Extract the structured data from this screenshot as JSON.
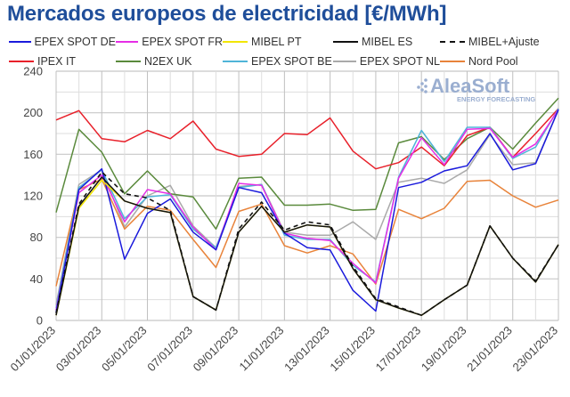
{
  "chart_data": {
    "type": "line",
    "title": "Mercados europeos de electricidad [€/MWh]",
    "xlabel": "",
    "ylabel": "",
    "ylim": [
      0,
      240
    ],
    "yticks": [
      "0",
      "40",
      "80",
      "120",
      "160",
      "200",
      "240"
    ],
    "ytick_values": [
      0,
      40,
      80,
      120,
      160,
      200,
      240
    ],
    "grid": true,
    "legend_position": "top",
    "watermark": {
      "brand": "AleaSoft",
      "tagline": "ENERGY FORECASTING"
    },
    "x": [
      "01/01/2023",
      "02/01/2023",
      "03/01/2023",
      "04/01/2023",
      "05/01/2023",
      "06/01/2023",
      "07/01/2023",
      "08/01/2023",
      "09/01/2023",
      "10/01/2023",
      "11/01/2023",
      "12/01/2023",
      "13/01/2023",
      "14/01/2023",
      "15/01/2023",
      "16/01/2023",
      "17/01/2023",
      "18/01/2023",
      "19/01/2023",
      "20/01/2023",
      "21/01/2023",
      "22/01/2023",
      "23/01/2023"
    ],
    "xtick_labels": [
      "01/01/2023",
      "03/01/2023",
      "05/01/2023",
      "07/01/2023",
      "09/01/2023",
      "11/01/2023",
      "13/01/2023",
      "15/01/2023",
      "17/01/2023",
      "19/01/2023",
      "21/01/2023",
      "23/01/2023"
    ],
    "series": [
      {
        "name": "EPEX SPOT DE",
        "color": "#1a1adc",
        "dash": false,
        "values": [
          8,
          126,
          146,
          59,
          103,
          117,
          85,
          68,
          128,
          123,
          84,
          70,
          68,
          29,
          9,
          128,
          133,
          144,
          149,
          180,
          145,
          151,
          203
        ]
      },
      {
        "name": "EPEX SPOT FR",
        "color": "#e62ee6",
        "dash": false,
        "values": [
          10,
          123,
          140,
          95,
          126,
          122,
          90,
          68,
          132,
          130,
          84,
          79,
          77,
          55,
          36,
          137,
          176,
          150,
          184,
          185,
          157,
          170,
          203
        ]
      },
      {
        "name": "MIBEL PT",
        "color": "#f2e600",
        "dash": false,
        "values": [
          5,
          108,
          135,
          115,
          108,
          104,
          23,
          10,
          85,
          110,
          85,
          92,
          90,
          50,
          20,
          12,
          5,
          20,
          34,
          91,
          60,
          37,
          73
        ]
      },
      {
        "name": "MIBEL ES",
        "color": "#111111",
        "dash": false,
        "values": [
          5,
          110,
          138,
          115,
          108,
          104,
          23,
          10,
          85,
          110,
          85,
          92,
          90,
          50,
          20,
          12,
          5,
          20,
          34,
          91,
          60,
          37,
          73
        ]
      },
      {
        "name": "MIBEL+Ajuste",
        "color": "#111111",
        "dash": true,
        "values": [
          7,
          112,
          143,
          122,
          118,
          106,
          23,
          10,
          88,
          114,
          87,
          95,
          92,
          52,
          21,
          13,
          5,
          20,
          34,
          91,
          60,
          38,
          73
        ]
      },
      {
        "name": "IPEX IT",
        "color": "#e8202a",
        "dash": false,
        "values": [
          193,
          202,
          175,
          172,
          183,
          175,
          192,
          165,
          158,
          160,
          180,
          179,
          195,
          163,
          146,
          152,
          167,
          149,
          178,
          186,
          157,
          180,
          204
        ]
      },
      {
        "name": "N2EX UK",
        "color": "#5a8a3c",
        "dash": false,
        "values": [
          104,
          184,
          162,
          122,
          144,
          122,
          119,
          88,
          137,
          138,
          111,
          111,
          112,
          106,
          107,
          171,
          177,
          155,
          175,
          186,
          165,
          190,
          214
        ]
      },
      {
        "name": "EPEX SPOT BE",
        "color": "#4fb4d8",
        "dash": false,
        "values": [
          12,
          128,
          145,
          98,
          119,
          121,
          88,
          70,
          128,
          131,
          82,
          78,
          78,
          53,
          37,
          138,
          183,
          153,
          186,
          186,
          156,
          167,
          204
        ]
      },
      {
        "name": "EPEX SPOT NL",
        "color": "#aaaaaa",
        "dash": false,
        "values": [
          15,
          131,
          145,
          90,
          120,
          130,
          91,
          70,
          129,
          131,
          85,
          82,
          82,
          95,
          78,
          133,
          137,
          132,
          145,
          179,
          150,
          152,
          203
        ]
      },
      {
        "name": "Nord Pool",
        "color": "#e8833a",
        "dash": false,
        "values": [
          33,
          126,
          136,
          88,
          110,
          106,
          78,
          51,
          105,
          112,
          72,
          65,
          72,
          64,
          35,
          107,
          98,
          108,
          134,
          135,
          120,
          109,
          116
        ]
      }
    ]
  }
}
